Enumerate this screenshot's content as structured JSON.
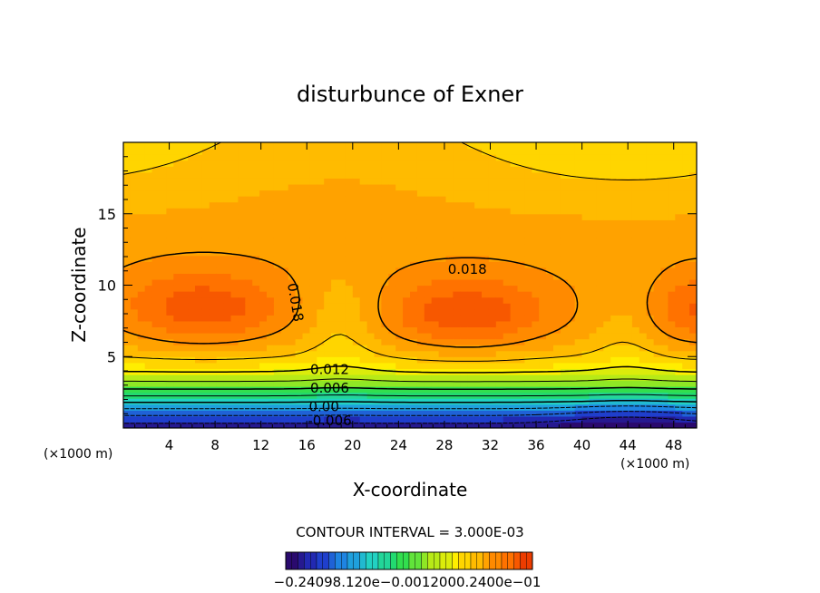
{
  "chart_data": {
    "type": "heatmap",
    "title": "disturbunce of Exner",
    "xlabel": "X-coordinate",
    "ylabel": "Z-coordinate",
    "x_unit_left": "(×1000 m)",
    "x_unit_right": "(×1000 m)",
    "xlim": [
      0,
      50
    ],
    "ylim": [
      0,
      20
    ],
    "xticks": [
      4,
      8,
      12,
      16,
      20,
      24,
      28,
      32,
      36,
      40,
      44,
      48
    ],
    "yticks": [
      5,
      10,
      15
    ],
    "contour_interval_text": "CONTOUR INTERVAL = 3.000E-03",
    "contour_labels": [
      {
        "text": "0.018",
        "x": 30,
        "z": 11.1
      },
      {
        "text": "0.018",
        "x": 15,
        "z": 8.8
      },
      {
        "text": "0.012",
        "x": 18,
        "z": 4.1
      },
      {
        "text": "0.006",
        "x": 18,
        "z": 2.8
      },
      {
        "text": "0.00",
        "x": 17.5,
        "z": 1.5
      },
      {
        "text": "-0.006",
        "x": 18,
        "z": 0.5
      }
    ],
    "colorbar_label_text": "−0.24098.1‍20e−0.0012000.2400e−01",
    "colormap": [
      "#2a0a6e",
      "#1f33c8",
      "#1e90e6",
      "#22d1c2",
      "#22dd55",
      "#9fe81e",
      "#ffee00",
      "#ffaa00",
      "#ff6a00",
      "#e02000"
    ]
  }
}
